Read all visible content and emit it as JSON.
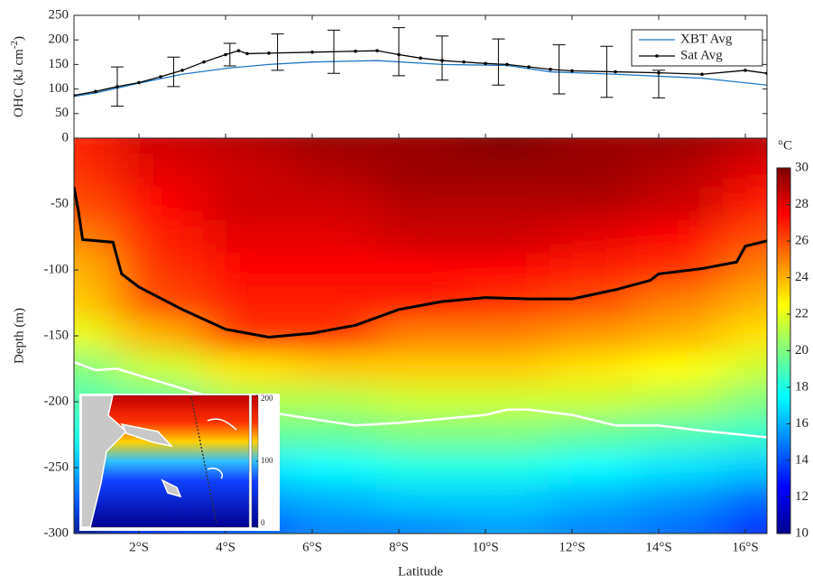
{
  "chart_data": [
    {
      "type": "line",
      "ylabel": "OHC (kJ cm",
      "ylabel_sup": "-2",
      "ylabel_end": ")",
      "xlim": [
        0.5,
        16.5
      ],
      "ylim": [
        0,
        250
      ],
      "yticks": [
        0,
        50,
        100,
        150,
        200,
        250
      ],
      "legend": "upper right",
      "series": [
        {
          "name": "XBT Avg",
          "color": "#1f77c4",
          "markers": false,
          "x": [
            0.5,
            1,
            2,
            3,
            4,
            5,
            6,
            7.5,
            9,
            10.5,
            11.5,
            13,
            15,
            16.5
          ],
          "values": [
            85,
            92,
            112,
            130,
            142,
            150,
            155,
            158,
            150,
            148,
            135,
            130,
            122,
            108
          ]
        },
        {
          "name": "Sat Avg",
          "color": "#000000",
          "markers": true,
          "x": [
            0.5,
            1,
            1.5,
            2,
            2.5,
            3,
            3.5,
            4,
            4.3,
            4.5,
            5,
            6,
            7,
            7.5,
            8,
            8.5,
            9,
            9.5,
            10,
            10.5,
            11,
            11.5,
            12,
            13,
            14,
            15,
            16,
            16.5
          ],
          "values": [
            87,
            95,
            105,
            113,
            125,
            138,
            155,
            170,
            178,
            172,
            173,
            175,
            177,
            178,
            170,
            163,
            158,
            155,
            152,
            150,
            145,
            140,
            137,
            135,
            133,
            130,
            138,
            132
          ]
        }
      ],
      "errorbars": {
        "x": [
          1.5,
          2.8,
          4.1,
          5.2,
          6.5,
          8,
          9,
          10.3,
          11.7,
          12.8,
          14
        ],
        "values": [
          105,
          135,
          170,
          175,
          176,
          176,
          163,
          155,
          140,
          135,
          110
        ],
        "errors": [
          40,
          30,
          23,
          37,
          44,
          49,
          45,
          47,
          50,
          52,
          28
        ]
      }
    },
    {
      "type": "contour",
      "xlabel": "Latitude",
      "ylabel": "Depth (m)",
      "xlim": [
        0.5,
        16.5
      ],
      "ylim": [
        -300,
        0
      ],
      "xticks": [
        {
          "value": 2,
          "label": "2°S"
        },
        {
          "value": 4,
          "label": "4°S"
        },
        {
          "value": 6,
          "label": "6°S"
        },
        {
          "value": 8,
          "label": "8°S"
        },
        {
          "value": 10,
          "label": "10°S"
        },
        {
          "value": 12,
          "label": "12°S"
        },
        {
          "value": 14,
          "label": "14°S"
        },
        {
          "value": 16,
          "label": "16°S"
        }
      ],
      "yticks": [
        -300,
        -250,
        -200,
        -150,
        -100,
        -50
      ],
      "colorbar_label": "°C",
      "clim": [
        10,
        30
      ],
      "colorbar_ticks": [
        10,
        12,
        14,
        16,
        18,
        20,
        22,
        24,
        26,
        28,
        30
      ],
      "lats": [
        0.5,
        2.5,
        4.5,
        6.5,
        8.5,
        10.5,
        12.5,
        14.5,
        16.5
      ],
      "depths": [
        0,
        -25,
        -50,
        -75,
        -100,
        -125,
        -150,
        -175,
        -200,
        -225,
        -250,
        -275,
        -300
      ],
      "temperature": [
        [
          27,
          28.5,
          29,
          29.5,
          29.5,
          30,
          29.5,
          29.5,
          29
        ],
        [
          26.5,
          28,
          28.5,
          29,
          29.5,
          29.5,
          29.5,
          29,
          28
        ],
        [
          26,
          27.5,
          28.5,
          28.5,
          29,
          29,
          29,
          28.5,
          27
        ],
        [
          25,
          27,
          28,
          28,
          28.5,
          28.5,
          28,
          27.5,
          26
        ],
        [
          24,
          26.5,
          27.5,
          27.5,
          27.5,
          27.5,
          27,
          26.5,
          25
        ],
        [
          23.5,
          26,
          27,
          27,
          27,
          26.5,
          26,
          25,
          24
        ],
        [
          22,
          24,
          26.5,
          26.5,
          25,
          25,
          24.5,
          24,
          23
        ],
        [
          20,
          21.5,
          23,
          23.5,
          23.5,
          23.5,
          23,
          22.5,
          21.5
        ],
        [
          19,
          19.5,
          21,
          21,
          21.5,
          21.5,
          21.5,
          21,
          20
        ],
        [
          18,
          18,
          19.5,
          19.5,
          20,
          20,
          19.5,
          19,
          18.5
        ],
        [
          16,
          16.5,
          17,
          17.5,
          18,
          18,
          17.5,
          17,
          16.5
        ],
        [
          14,
          15,
          15.5,
          16,
          16.5,
          16.5,
          16,
          15.5,
          14.5
        ],
        [
          10,
          13,
          14,
          15,
          15,
          15.5,
          15,
          14.5,
          13
        ]
      ],
      "isotherms": [
        {
          "color": "#000000",
          "x": [
            0.5,
            0.6,
            0.7,
            1.4,
            1.6,
            2,
            3,
            4,
            5,
            6,
            7,
            8,
            9,
            10,
            11,
            12,
            13,
            13.8,
            14,
            15,
            15.8,
            16,
            16.5
          ],
          "values": [
            -37,
            -55,
            -77,
            -79,
            -103,
            -113,
            -130,
            -145,
            -151,
            -148,
            -142,
            -130,
            -124,
            -121,
            -122,
            -122,
            -115,
            -108,
            -103,
            -99,
            -94,
            -82,
            -78
          ]
        },
        {
          "color": "#ffffff",
          "x": [
            0.5,
            1,
            1.5,
            2,
            3,
            4,
            5,
            6,
            7,
            8,
            9,
            10,
            10.5,
            11,
            12,
            13,
            14,
            15,
            16.5
          ],
          "values": [
            -170,
            -176,
            -175,
            -180,
            -190,
            -200,
            -208,
            -213,
            -218,
            -216,
            -213,
            -210,
            -206,
            -206,
            -210,
            -218,
            -218,
            -222,
            -227
          ]
        }
      ]
    }
  ],
  "inset": {
    "colorbar_ticks": [
      0,
      100,
      200
    ]
  }
}
